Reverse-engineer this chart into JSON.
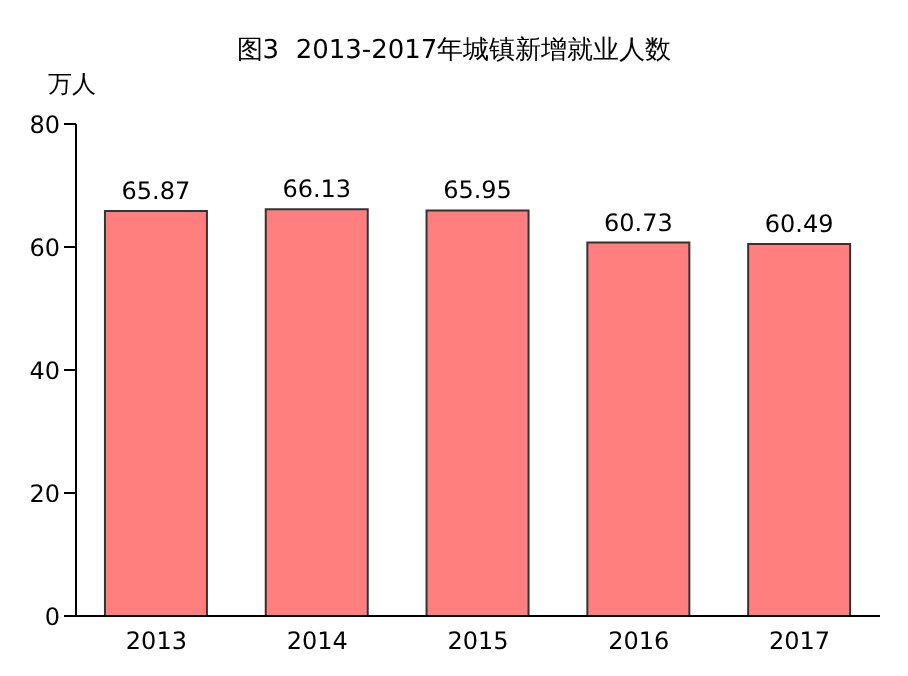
{
  "chart_data": {
    "type": "bar",
    "title": "图3  2013-2017年城镇新增就业人数",
    "ylabel": "万人",
    "categories": [
      "2013",
      "2014",
      "2015",
      "2016",
      "2017"
    ],
    "values": [
      65.87,
      66.13,
      65.95,
      60.73,
      60.49
    ],
    "color": "#ff7f7f",
    "ylim": [
      0,
      80
    ],
    "yticks": [
      0,
      20,
      40,
      60,
      80
    ],
    "grid": false,
    "data_labels": true,
    "legend": false
  }
}
